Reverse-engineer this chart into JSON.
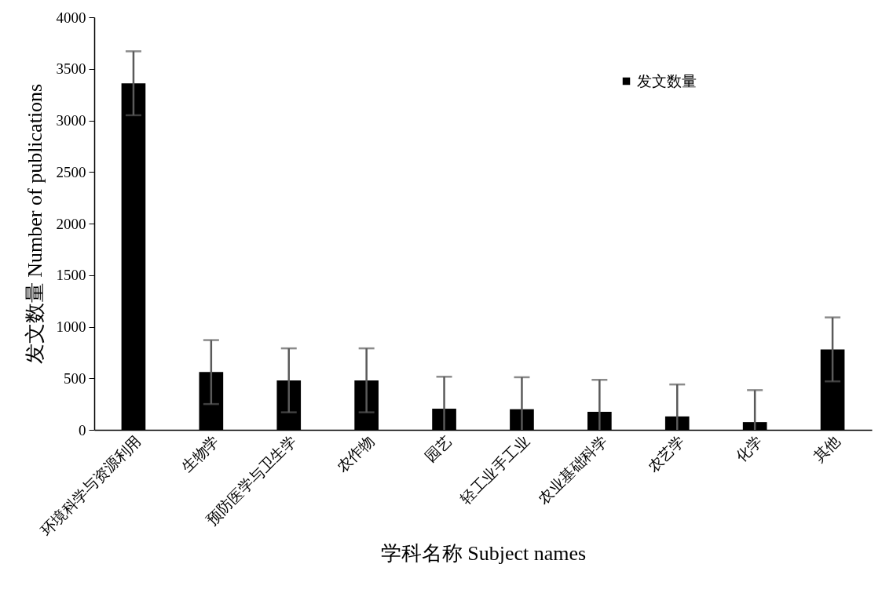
{
  "chart_data": {
    "type": "bar",
    "xlabel": "学科名称  Subject names",
    "ylabel": "发文数量  Number of publications",
    "categories": [
      "环境科学与资源利用",
      "生物学",
      "预防医学与卫生学",
      "农作物",
      "园艺",
      "轻工业手工业",
      "农业基础科学",
      "农艺学",
      "化学",
      "其他"
    ],
    "series": [
      {
        "name": "发文数量",
        "color": "#000000",
        "values": [
          3360,
          560,
          480,
          480,
          205,
          200,
          175,
          130,
          75,
          780
        ],
        "errors": [
          [
            3050,
            3670
          ],
          [
            250,
            870
          ],
          [
            170,
            790
          ],
          [
            170,
            790
          ],
          [
            0,
            515
          ],
          [
            0,
            510
          ],
          [
            0,
            485
          ],
          [
            0,
            440
          ],
          [
            0,
            385
          ],
          [
            470,
            1090
          ]
        ]
      }
    ],
    "ylim": [
      0,
      4000
    ],
    "yticks": [
      0,
      500,
      1000,
      1500,
      2000,
      2500,
      3000,
      3500,
      4000
    ],
    "legend": "top right"
  }
}
